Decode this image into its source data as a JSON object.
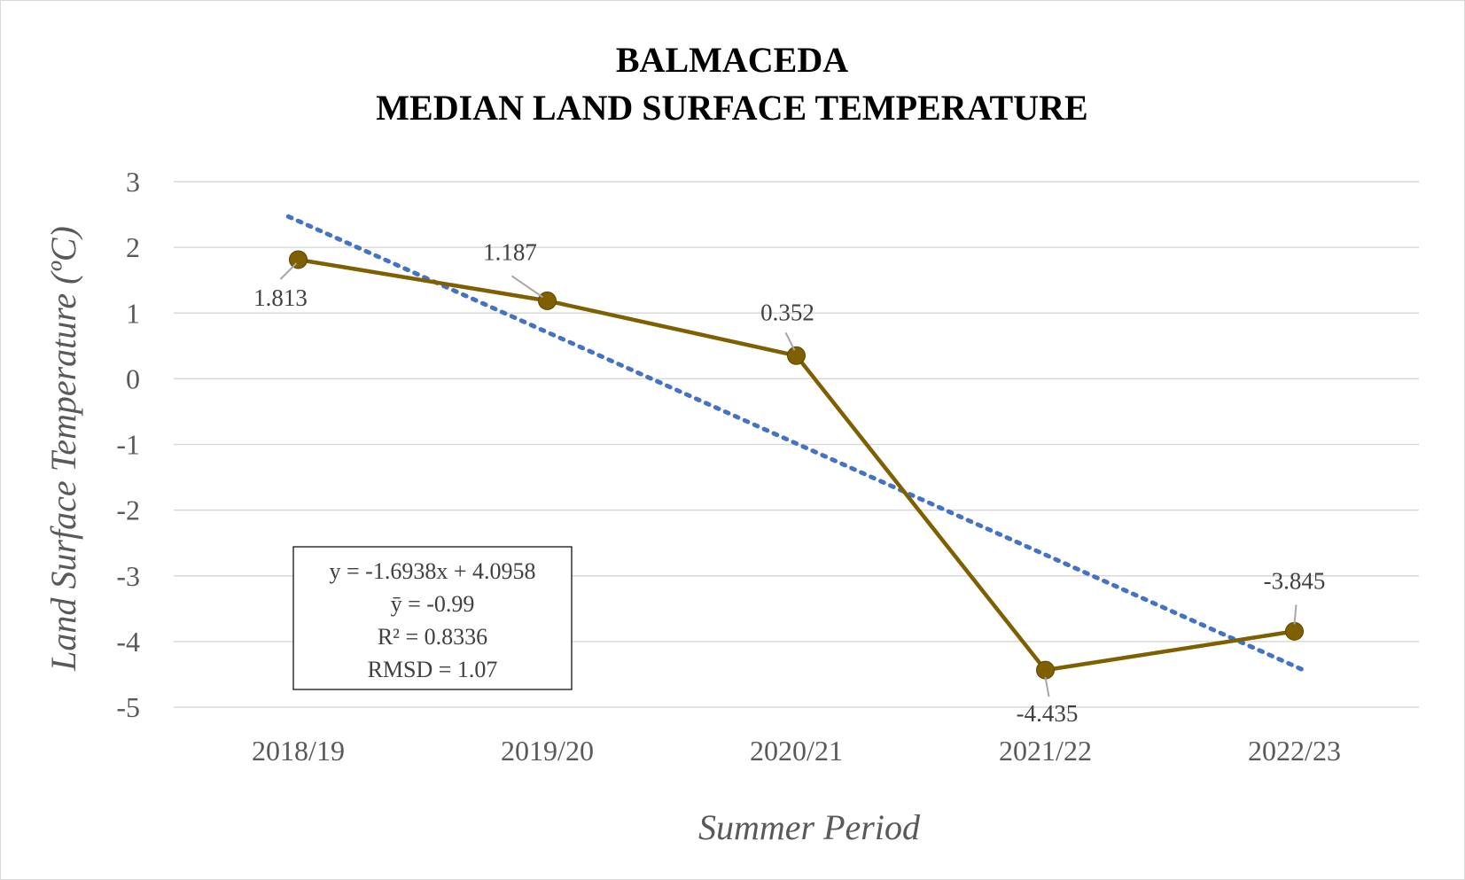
{
  "chart_data": {
    "type": "line",
    "title_lines": [
      "BALMACEDA",
      "MEDIAN LAND SURFACE TEMPERATURE"
    ],
    "xlabel": "Summer Period",
    "ylabel": "Land Surface Temperature (ºC)",
    "categories": [
      "2018/19",
      "2019/20",
      "2020/21",
      "2021/22",
      "2022/23"
    ],
    "series": [
      {
        "values": [
          1.813,
          1.187,
          0.352,
          -4.435,
          -3.845
        ],
        "labels": [
          "1.813",
          "1.187",
          "0.352",
          "-4.435",
          "-3.845"
        ],
        "color": "#7f6000"
      }
    ],
    "trendline": {
      "type": "linear",
      "slope": -1.6938,
      "intercept": 4.0958,
      "style": "dotted",
      "color": "#4472c4"
    },
    "yticks": [
      3,
      2,
      1,
      0,
      -1,
      -2,
      -3,
      -4,
      -5
    ],
    "ylim": [
      -5,
      3
    ],
    "grid": true,
    "annotation_lines": [
      "y = -1.6938x + 4.0958",
      "ȳ = -0.99",
      "R² = 0.8336",
      "RMSD = 1.07"
    ]
  }
}
